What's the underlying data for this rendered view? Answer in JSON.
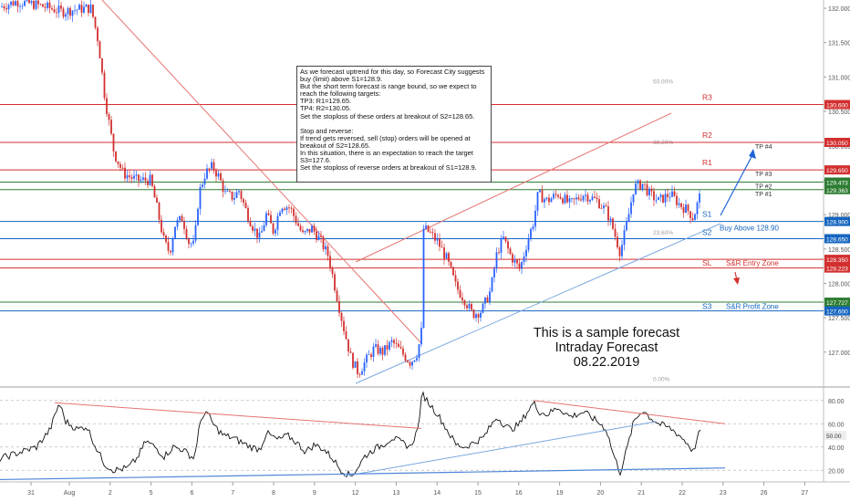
{
  "chart_data": [
    {
      "type": "candlestick",
      "title": "",
      "price_axis": {
        "ylim": [
          126.52,
          132.12
        ],
        "ticks": [
          "132.000",
          "131.500",
          "131.000",
          "130.500",
          "130.000",
          "129.500",
          "129.000",
          "128.500",
          "128.000",
          "127.500",
          "127.000"
        ]
      },
      "time_axis": {
        "ticks": [
          "31",
          "Aug",
          "2",
          "5",
          "6",
          "7",
          "8",
          "9",
          "12",
          "13",
          "14",
          "15",
          "16",
          "19",
          "20",
          "21",
          "22",
          "23",
          "26",
          "27"
        ]
      },
      "price_path": [
        [
          0,
          132.02
        ],
        [
          18,
          132.1
        ],
        [
          40,
          132.05
        ],
        [
          55,
          132.0
        ],
        [
          68,
          131.95
        ],
        [
          82,
          131.98
        ],
        [
          95,
          132.0
        ],
        [
          100,
          132.0
        ],
        [
          108,
          131.5
        ],
        [
          115,
          130.7
        ],
        [
          125,
          129.9
        ],
        [
          135,
          129.6
        ],
        [
          150,
          129.5
        ],
        [
          165,
          129.5
        ],
        [
          172,
          129.1
        ],
        [
          180,
          128.6
        ],
        [
          186,
          128.45
        ],
        [
          192,
          128.85
        ],
        [
          200,
          128.95
        ],
        [
          207,
          128.6
        ],
        [
          213,
          128.55
        ],
        [
          218,
          129.3
        ],
        [
          225,
          129.6
        ],
        [
          233,
          129.7
        ],
        [
          240,
          129.55
        ],
        [
          247,
          129.3
        ],
        [
          256,
          129.25
        ],
        [
          262,
          129.35
        ],
        [
          270,
          129.05
        ],
        [
          278,
          128.8
        ],
        [
          285,
          128.65
        ],
        [
          292,
          129.0
        ],
        [
          300,
          128.75
        ],
        [
          308,
          129.15
        ],
        [
          318,
          129.1
        ],
        [
          325,
          128.9
        ],
        [
          332,
          128.7
        ],
        [
          342,
          128.8
        ],
        [
          350,
          128.65
        ],
        [
          360,
          128.4
        ],
        [
          368,
          127.9
        ],
        [
          376,
          127.4
        ],
        [
          385,
          126.9
        ],
        [
          393,
          126.7
        ],
        [
          400,
          126.85
        ],
        [
          410,
          127.05
        ],
        [
          420,
          127.0
        ],
        [
          430,
          127.15
        ],
        [
          440,
          127.0
        ],
        [
          450,
          126.85
        ],
        [
          458,
          127.0
        ],
        [
          462,
          127.3
        ],
        [
          464,
          128.8
        ],
        [
          470,
          128.75
        ],
        [
          480,
          128.6
        ],
        [
          490,
          128.35
        ],
        [
          500,
          127.95
        ],
        [
          510,
          127.75
        ],
        [
          518,
          127.55
        ],
        [
          528,
          127.6
        ],
        [
          538,
          127.9
        ],
        [
          545,
          128.45
        ],
        [
          552,
          128.65
        ],
        [
          560,
          128.4
        ],
        [
          570,
          128.2
        ],
        [
          578,
          128.6
        ],
        [
          585,
          128.9
        ],
        [
          590,
          129.3
        ],
        [
          600,
          129.2
        ],
        [
          612,
          129.3
        ],
        [
          625,
          129.15
        ],
        [
          640,
          129.3
        ],
        [
          655,
          129.2
        ],
        [
          665,
          129.05
        ],
        [
          672,
          128.8
        ],
        [
          680,
          128.45
        ],
        [
          688,
          128.9
        ],
        [
          695,
          129.4
        ],
        [
          705,
          129.45
        ],
        [
          712,
          129.3
        ],
        [
          722,
          129.2
        ],
        [
          735,
          129.3
        ],
        [
          745,
          129.15
        ],
        [
          755,
          129.05
        ],
        [
          760,
          128.95
        ],
        [
          768,
          129.3
        ]
      ],
      "levels": [
        {
          "name": "R3",
          "value": 130.6,
          "badge": "130.600",
          "color": "#d32f2f"
        },
        {
          "name": "R2",
          "value": 130.05,
          "badge": "130.050",
          "color": "#d32f2f"
        },
        {
          "name": "R1",
          "value": 129.65,
          "badge": "129.650",
          "color": "#d32f2f"
        },
        {
          "name": "TP #3",
          "value": 129.473,
          "badge": "129.473",
          "color": "#2e7d32"
        },
        {
          "name": "TP #1",
          "value": 129.363,
          "badge": "129.363",
          "color": "#2e7d32"
        },
        {
          "name": "S1",
          "value": 128.9,
          "badge": "128.900",
          "color": "#1565c0"
        },
        {
          "name": "S2",
          "value": 128.65,
          "badge": "128.650",
          "color": "#1565c0"
        },
        {
          "name": "SL",
          "value": 128.35,
          "badge": "128.350",
          "color": "#d32f2f"
        },
        {
          "name": "",
          "value": 128.223,
          "badge": "128.223",
          "color": "#d32f2f"
        },
        {
          "name": "",
          "value": 127.727,
          "badge": "127.727",
          "color": "#2e7d32"
        },
        {
          "name": "S3",
          "value": 127.6,
          "badge": "127.600",
          "color": "#1565c0"
        }
      ],
      "fib_labels": [
        "50.00%",
        "38.20%",
        "23.60%",
        "0.00%"
      ],
      "annotations": {
        "buy_above": "Buy Above 128.90",
        "entry_zone": "S&R Entry Zone",
        "profit_zone": "S&R Profit Zone",
        "tp1": "TP #1",
        "tp2": "TP #2",
        "tp3": "TP #3",
        "tp4": "TP #4",
        "r1": "R1",
        "r2": "R2",
        "r3": "R3",
        "s1": "S1",
        "s2": "S2",
        "s3": "S3",
        "sl": "SL"
      }
    },
    {
      "type": "line",
      "title": "",
      "ylim": [
        10,
        90
      ],
      "ticks": [
        "80.00",
        "60.00",
        "40.00",
        "20.00"
      ],
      "current_value": "50.00",
      "path": [
        [
          0,
          30
        ],
        [
          20,
          35
        ],
        [
          40,
          40
        ],
        [
          55,
          55
        ],
        [
          65,
          78
        ],
        [
          72,
          62
        ],
        [
          85,
          55
        ],
        [
          95,
          58
        ],
        [
          105,
          40
        ],
        [
          115,
          25
        ],
        [
          125,
          20
        ],
        [
          140,
          22
        ],
        [
          150,
          30
        ],
        [
          160,
          45
        ],
        [
          170,
          40
        ],
        [
          180,
          32
        ],
        [
          190,
          40
        ],
        [
          200,
          38
        ],
        [
          213,
          30
        ],
        [
          218,
          55
        ],
        [
          225,
          72
        ],
        [
          235,
          58
        ],
        [
          245,
          50
        ],
        [
          255,
          48
        ],
        [
          265,
          44
        ],
        [
          275,
          40
        ],
        [
          285,
          38
        ],
        [
          292,
          52
        ],
        [
          305,
          46
        ],
        [
          315,
          50
        ],
        [
          325,
          44
        ],
        [
          335,
          36
        ],
        [
          345,
          42
        ],
        [
          355,
          38
        ],
        [
          365,
          30
        ],
        [
          372,
          22
        ],
        [
          378,
          18
        ],
        [
          385,
          15
        ],
        [
          392,
          22
        ],
        [
          400,
          32
        ],
        [
          410,
          38
        ],
        [
          420,
          42
        ],
        [
          430,
          48
        ],
        [
          440,
          44
        ],
        [
          450,
          40
        ],
        [
          458,
          55
        ],
        [
          463,
          86
        ],
        [
          470,
          78
        ],
        [
          480,
          68
        ],
        [
          490,
          55
        ],
        [
          500,
          42
        ],
        [
          510,
          40
        ],
        [
          520,
          44
        ],
        [
          530,
          48
        ],
        [
          538,
          58
        ],
        [
          545,
          66
        ],
        [
          552,
          60
        ],
        [
          560,
          55
        ],
        [
          570,
          60
        ],
        [
          578,
          70
        ],
        [
          585,
          78
        ],
        [
          592,
          70
        ],
        [
          600,
          68
        ],
        [
          612,
          74
        ],
        [
          625,
          66
        ],
        [
          640,
          70
        ],
        [
          655,
          62
        ],
        [
          665,
          55
        ],
        [
          672,
          35
        ],
        [
          680,
          18
        ],
        [
          688,
          40
        ],
        [
          695,
          62
        ],
        [
          705,
          72
        ],
        [
          712,
          66
        ],
        [
          722,
          60
        ],
        [
          735,
          56
        ],
        [
          745,
          50
        ],
        [
          755,
          42
        ],
        [
          760,
          36
        ],
        [
          768,
          55
        ]
      ]
    }
  ],
  "note": {
    "lines": [
      "As we forecast uptrend for this day, so Forecast City suggests buy (limit) above S1=128.9.",
      "But the short term forecast is range bound, so we expect to reach the following targets:",
      "TP3: R1=129.65.",
      "TP4: R2=130.05.",
      "Set the stoploss of these orders at breakout of S2=128.65.",
      "",
      "Stop and reverse:",
      "If trend gets reversed, sell (stop) orders will be opened at breakout of S2=128.65.",
      "In this situation, there is an expectation to reach the target S3=127.6.",
      "Set the stoploss of reverse orders at breakout of S1=128.9."
    ]
  },
  "stamp": {
    "line1": "This is a sample forecast",
    "line2": "Intraday Forecast",
    "line3": "08.22.2019"
  },
  "colors": {
    "up": "#2962ff",
    "down": "#d32f2f",
    "osc": "#111111",
    "resistance": "#d32f2f",
    "support": "#1565c0",
    "target": "#2e7d32"
  }
}
